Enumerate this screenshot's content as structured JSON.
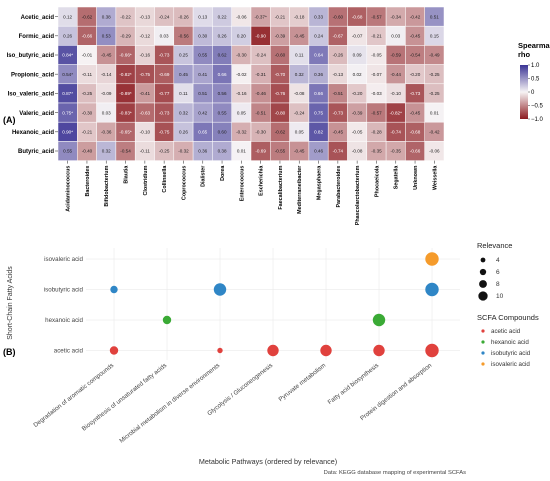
{
  "panel_a_label": "(A)",
  "panel_b_label": "(B)",
  "chart_data": [
    {
      "type": "heatmap",
      "rows": [
        "Acetic_acid",
        "Formic_acid",
        "Iso_butyric_acid",
        "Propionic_acid",
        "Iso_valeric_acid",
        "Valeric_acid",
        "Hexanoic_acid",
        "Butyric_acid"
      ],
      "columns": [
        "Acidaminococcus",
        "Bacteroides",
        "Bifidobacterium",
        "Blautia",
        "Clostridium",
        "Collinsella",
        "Coprococcus",
        "Dialister",
        "Dorea",
        "Enterococcus",
        "Escherichia",
        "Faecalibacterium",
        "Mediterraneibacter",
        "Megasphaera",
        "Parabacteroides",
        "Phascolarctobacterium",
        "Phocaeicola",
        "Segatella",
        "Unknown",
        "Weissella"
      ],
      "values": [
        [
          0.12,
          -0.62,
          0.38,
          -0.22,
          -0.13,
          -0.24,
          -0.26,
          0.13,
          0.22,
          -0.06,
          -0.37,
          -0.21,
          -0.18,
          0.33,
          -0.6,
          -0.68,
          -0.57,
          -0.34,
          -0.42,
          0.51
        ],
        [
          0.26,
          -0.66,
          0.53,
          -0.29,
          -0.12,
          0.03,
          -0.56,
          0.3,
          0.26,
          0.2,
          -0.9,
          -0.39,
          -0.45,
          0.24,
          -0.67,
          -0.07,
          -0.21,
          0.03,
          -0.45,
          0.15
        ],
        [
          0.84,
          -0.01,
          -0.45,
          -0.66,
          -0.16,
          -0.73,
          0.25,
          0.55,
          0.62,
          -0.3,
          -0.24,
          -0.6,
          0.11,
          0.64,
          -0.26,
          0.09,
          -0.05,
          -0.59,
          -0.54,
          -0.49
        ],
        [
          0.54,
          -0.11,
          -0.14,
          -0.82,
          -0.75,
          -0.69,
          0.45,
          0.41,
          0.66,
          -0.02,
          -0.31,
          -0.7,
          0.32,
          0.36,
          -0.13,
          0.02,
          -0.07,
          -0.44,
          -0.2,
          -0.25
        ],
        [
          0.87,
          -0.25,
          -0.09,
          -0.89,
          -0.41,
          -0.77,
          0.11,
          0.51,
          0.56,
          -0.16,
          -0.46,
          -0.76,
          -0.08,
          0.66,
          -0.51,
          -0.2,
          -0.03,
          -0.1,
          -0.73,
          -0.25
        ],
        [
          0.75,
          -0.3,
          0.03,
          -0.83,
          -0.63,
          -0.73,
          0.32,
          0.42,
          0.55,
          0.05,
          -0.51,
          -0.8,
          -0.24,
          0.75,
          -0.73,
          -0.39,
          -0.57,
          -0.82,
          -0.45,
          0.01
        ],
        [
          0.9,
          -0.21,
          -0.36,
          -0.65,
          -0.1,
          -0.75,
          0.26,
          0.65,
          0.6,
          -0.32,
          -0.3,
          -0.62,
          0.05,
          0.82,
          -0.45,
          -0.05,
          -0.28,
          -0.74,
          -0.68,
          -0.42
        ],
        [
          0.55,
          -0.4,
          0.32,
          -0.54,
          -0.11,
          -0.25,
          -0.32,
          0.36,
          0.38,
          0.01,
          -0.69,
          -0.55,
          -0.45,
          0.46,
          -0.74,
          -0.08,
          -0.35,
          -0.35,
          -0.66,
          -0.06
        ]
      ],
      "star_cells": [
        [
          0,
          10
        ],
        [
          2,
          0
        ],
        [
          2,
          3
        ],
        [
          3,
          0
        ],
        [
          3,
          3
        ],
        [
          4,
          0
        ],
        [
          4,
          3
        ],
        [
          5,
          0
        ],
        [
          5,
          3
        ],
        [
          5,
          17
        ],
        [
          6,
          0
        ],
        [
          6,
          3
        ]
      ],
      "legend": {
        "title": "Spearman\nrho",
        "ticks": [
          "1.0",
          "0.5",
          "0",
          "−0.5",
          "−1.0"
        ],
        "range": [
          -1,
          1
        ]
      },
      "colors": {
        "high": "#3b3495",
        "mid": "#f7f4f5",
        "low": "#8c1a1f"
      }
    },
    {
      "type": "scatter",
      "categories_x": [
        "Degradation of aromatic compounds",
        "Biosynthesis of unsaturated fatty acids",
        "Microbial metabolism in diverse environments",
        "Glycolysis / Gluconeogenesis",
        "Pyruvate metabolism",
        "Fatty acid biosynthesis",
        "Protein digestion and absorption"
      ],
      "categories_y": [
        "isovaleric acid",
        "isobutyric acid",
        "hexanoic acid",
        "acetic acid"
      ],
      "xlabel": "Metabolic Pathways (ordered by relevance)",
      "ylabel": "Short-Chain Fatty Acids",
      "caption": "Data: KEGG database mapping of experimental SCFAs",
      "points": [
        {
          "x": "Protein digestion and absorption",
          "y": "isovaleric acid",
          "relevance": 11,
          "compound": "isovaleric acid"
        },
        {
          "x": "Degradation of aromatic compounds",
          "y": "isobutyric acid",
          "relevance": 5,
          "compound": "isobutyric acid"
        },
        {
          "x": "Microbial metabolism in diverse environments",
          "y": "isobutyric acid",
          "relevance": 10,
          "compound": "isobutyric acid"
        },
        {
          "x": "Protein digestion and absorption",
          "y": "isobutyric acid",
          "relevance": 11,
          "compound": "isobutyric acid"
        },
        {
          "x": "Biosynthesis of unsaturated fatty acids",
          "y": "hexanoic acid",
          "relevance": 6,
          "compound": "hexanoic acid"
        },
        {
          "x": "Fatty acid biosynthesis",
          "y": "hexanoic acid",
          "relevance": 10,
          "compound": "hexanoic acid"
        },
        {
          "x": "Degradation of aromatic compounds",
          "y": "acetic acid",
          "relevance": 6,
          "compound": "acetic acid"
        },
        {
          "x": "Microbial metabolism in diverse environments",
          "y": "acetic acid",
          "relevance": 3,
          "compound": "acetic acid"
        },
        {
          "x": "Glycolysis / Gluconeogenesis",
          "y": "acetic acid",
          "relevance": 9,
          "compound": "acetic acid"
        },
        {
          "x": "Pyruvate metabolism",
          "y": "acetic acid",
          "relevance": 9,
          "compound": "acetic acid"
        },
        {
          "x": "Fatty acid biosynthesis",
          "y": "acetic acid",
          "relevance": 9,
          "compound": "acetic acid"
        },
        {
          "x": "Protein digestion and absorption",
          "y": "acetic acid",
          "relevance": 11,
          "compound": "acetic acid"
        }
      ],
      "size_legend": {
        "title": "Relevance",
        "values": [
          "4",
          "6",
          "8",
          "10"
        ]
      },
      "color_legend": {
        "title": "SCFA Compounds",
        "items": [
          {
            "name": "acetic acid",
            "color": "#e0413d"
          },
          {
            "name": "hexanoic acid",
            "color": "#3aaa35"
          },
          {
            "name": "isobutyric acid",
            "color": "#2f86c6"
          },
          {
            "name": "isovaleric acid",
            "color": "#f59b2b"
          }
        ]
      }
    }
  ]
}
